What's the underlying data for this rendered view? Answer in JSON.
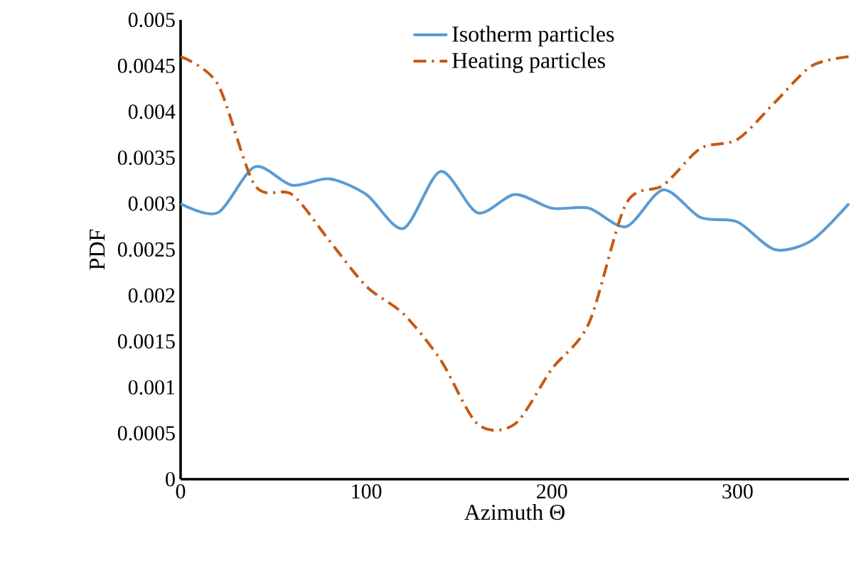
{
  "chart_data": {
    "type": "line",
    "xlabel": "Azimuth Θ",
    "ylabel": "PDF",
    "xlim": [
      0,
      360
    ],
    "xticks": [
      0,
      100,
      200,
      300
    ],
    "ylim": [
      0,
      0.005
    ],
    "yticks": [
      0,
      0.0005,
      0.001,
      0.0015,
      0.002,
      0.0025,
      0.003,
      0.0035,
      0.004,
      0.0045,
      0.005
    ],
    "legend": "top",
    "grid": false,
    "marker": "none",
    "x": [
      0,
      20,
      40,
      60,
      80,
      100,
      120,
      140,
      160,
      180,
      200,
      220,
      240,
      260,
      280,
      300,
      320,
      340,
      360
    ],
    "series": [
      {
        "name": "Isotherm particles",
        "color": "#5b9bd5",
        "line_style": "solid",
        "values": [
          0.003,
          0.0029,
          0.0034,
          0.0032,
          0.00327,
          0.0031,
          0.00273,
          0.00335,
          0.0029,
          0.0031,
          0.00295,
          0.00295,
          0.00275,
          0.00315,
          0.00285,
          0.0028,
          0.0025,
          0.0026,
          0.003
        ]
      },
      {
        "name": "Heating particles",
        "color": "#c55a11",
        "line_style": "dashdot",
        "values": [
          0.0046,
          0.0043,
          0.0032,
          0.0031,
          0.0026,
          0.0021,
          0.0018,
          0.0013,
          0.0006,
          0.0006,
          0.0012,
          0.0017,
          0.003,
          0.0032,
          0.0036,
          0.0037,
          0.0041,
          0.0045,
          0.0046
        ]
      }
    ]
  }
}
